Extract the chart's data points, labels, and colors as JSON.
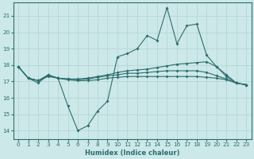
{
  "xlabel": "Humidex (Indice chaleur)",
  "x": [
    0,
    1,
    2,
    3,
    4,
    5,
    6,
    7,
    8,
    9,
    10,
    11,
    12,
    13,
    14,
    15,
    16,
    17,
    18,
    19,
    20,
    21,
    22,
    23
  ],
  "line1": [
    17.9,
    17.2,
    16.9,
    17.4,
    17.2,
    15.5,
    14.0,
    14.3,
    15.2,
    15.8,
    18.5,
    18.7,
    19.0,
    19.8,
    19.5,
    21.5,
    19.3,
    20.4,
    20.5,
    18.6,
    17.9,
    17.3,
    16.9,
    16.8
  ],
  "line2": [
    17.9,
    17.2,
    17.05,
    17.4,
    17.2,
    17.15,
    17.15,
    17.2,
    17.3,
    17.4,
    17.55,
    17.65,
    17.7,
    17.75,
    17.85,
    17.95,
    18.05,
    18.1,
    18.15,
    18.2,
    17.9,
    17.4,
    16.9,
    16.8
  ],
  "line3": [
    17.9,
    17.2,
    17.05,
    17.35,
    17.2,
    17.15,
    17.1,
    17.15,
    17.25,
    17.35,
    17.4,
    17.5,
    17.5,
    17.55,
    17.6,
    17.65,
    17.65,
    17.65,
    17.65,
    17.55,
    17.35,
    17.15,
    16.9,
    16.8
  ],
  "line4": [
    17.9,
    17.2,
    17.05,
    17.3,
    17.2,
    17.1,
    17.05,
    17.05,
    17.1,
    17.2,
    17.25,
    17.3,
    17.3,
    17.3,
    17.3,
    17.3,
    17.3,
    17.3,
    17.3,
    17.25,
    17.2,
    17.1,
    16.9,
    16.8
  ],
  "line_color": "#2d6e6e",
  "bg_color": "#cde8e8",
  "grid_color": "#aed4d4",
  "ylim": [
    13.5,
    21.8
  ],
  "yticks": [
    14,
    15,
    16,
    17,
    18,
    19,
    20,
    21
  ],
  "xlim": [
    -0.5,
    23.5
  ],
  "xlabel_fontsize": 6.0,
  "tick_fontsize": 5.2,
  "lw": 0.8,
  "ms": 2.0
}
